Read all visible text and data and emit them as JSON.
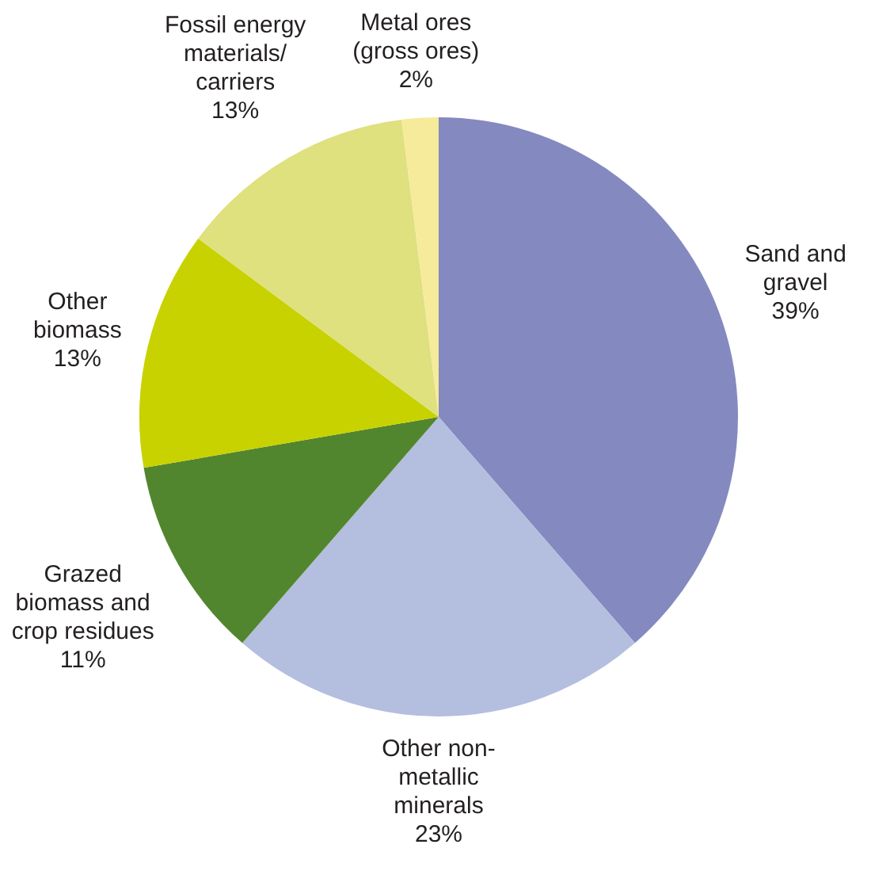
{
  "chart_data": {
    "type": "pie",
    "categories": [
      "Sand and gravel",
      "Other non-metallic minerals",
      "Grazed biomass and crop residues",
      "Other biomass",
      "Fossil energy materials/ carriers",
      "Metal ores (gross ores)"
    ],
    "values": [
      39,
      23,
      11,
      13,
      13,
      2
    ],
    "value_labels": [
      "39%",
      "23%",
      "11%",
      "13%",
      "13%",
      "2%"
    ],
    "colors": [
      "#8489c0",
      "#b4bedf",
      "#52862e",
      "#c8d200",
      "#dfe07e",
      "#f5eb9a"
    ],
    "legend": false
  }
}
